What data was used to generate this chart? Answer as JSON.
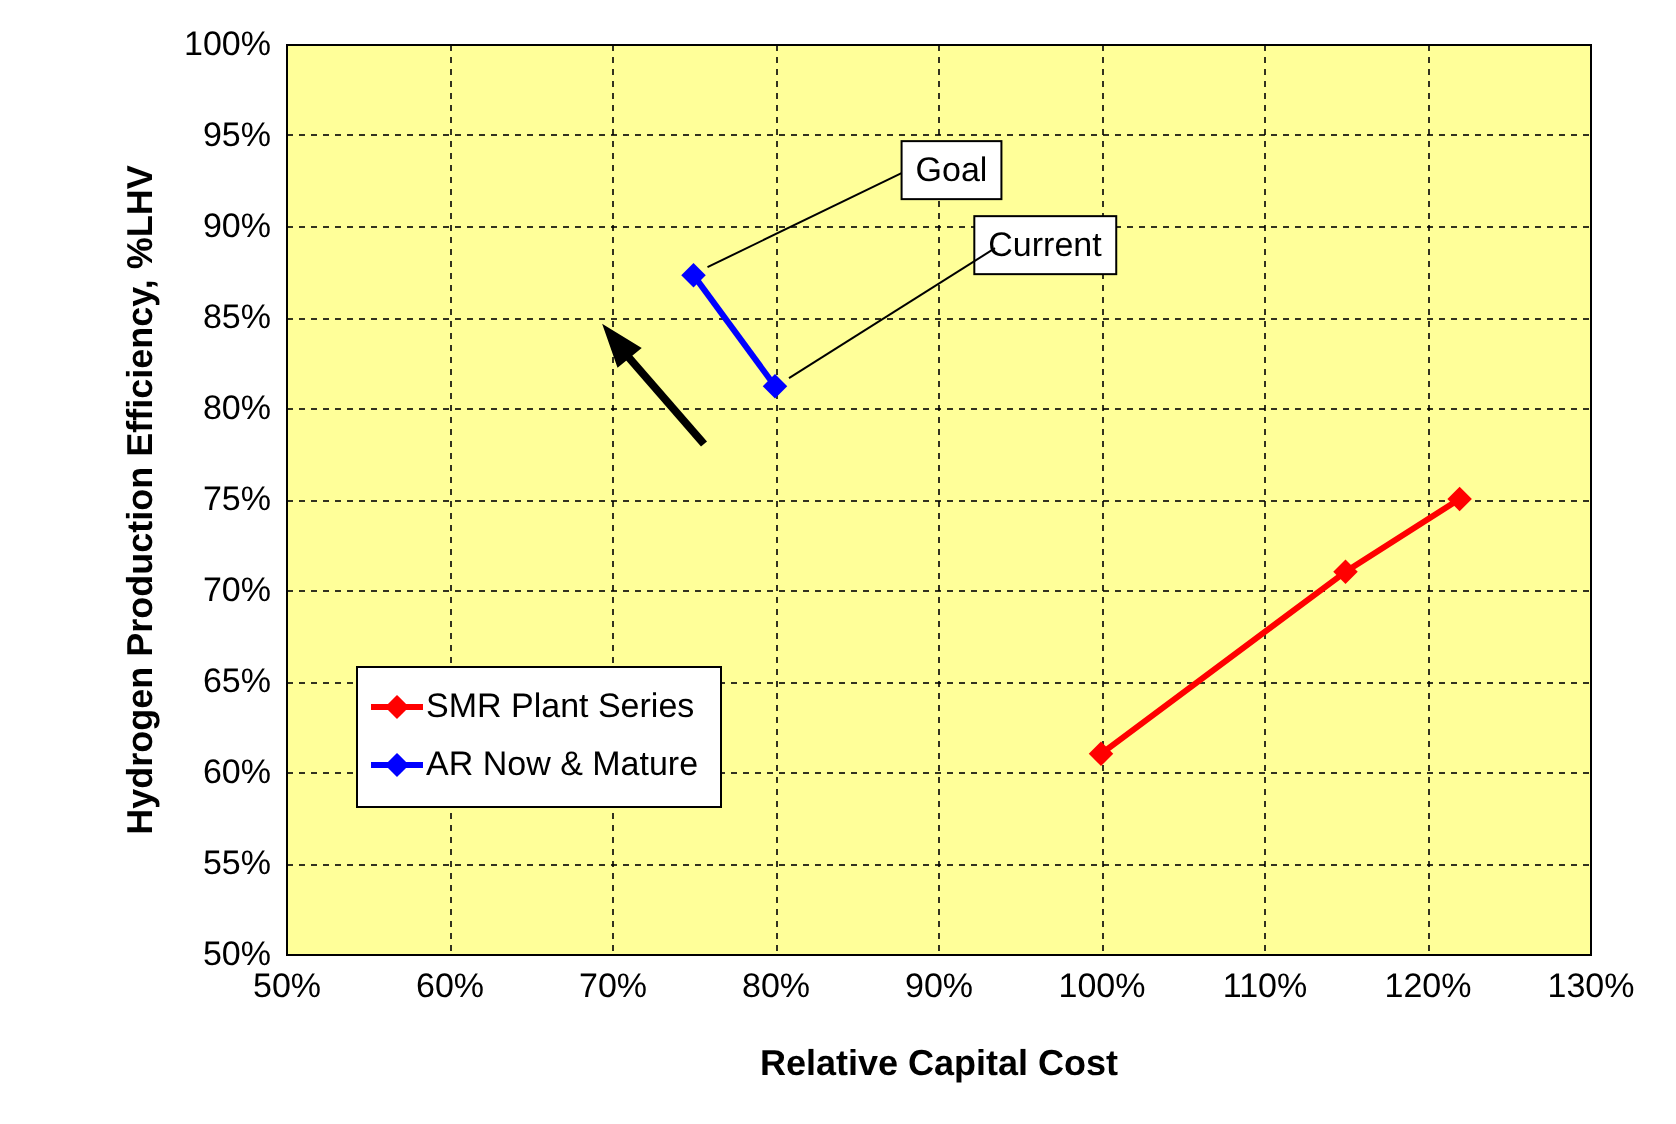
{
  "chart_data": {
    "type": "line",
    "xlabel": "Relative Capital Cost",
    "ylabel": "Hydrogen Production Efficiency, %LHV",
    "series": [
      {
        "name": "SMR Plant Series",
        "color": "#ff0000",
        "x": [
          100,
          115,
          122
        ],
        "values": [
          61,
          71,
          75
        ]
      },
      {
        "name": "AR Now & Mature",
        "color": "#0000ff",
        "x": [
          75,
          80
        ],
        "values": [
          87.3,
          81.2
        ]
      }
    ],
    "xlim": [
      50,
      130
    ],
    "xticks": [
      {
        "value": 50,
        "label": "50%"
      },
      {
        "value": 60,
        "label": "60%"
      },
      {
        "value": 70,
        "label": "70%"
      },
      {
        "value": 80,
        "label": "80%"
      },
      {
        "value": 90,
        "label": "90%"
      },
      {
        "value": 100,
        "label": "100%"
      },
      {
        "value": 110,
        "label": "110%"
      },
      {
        "value": 120,
        "label": "120%"
      },
      {
        "value": 130,
        "label": "130%"
      }
    ],
    "ylim": [
      50,
      100
    ],
    "yticks": [
      {
        "value": 50,
        "label": "50%"
      },
      {
        "value": 55,
        "label": "55%"
      },
      {
        "value": 60,
        "label": "60%"
      },
      {
        "value": 65,
        "label": "65%"
      },
      {
        "value": 70,
        "label": "70%"
      },
      {
        "value": 75,
        "label": "75%"
      },
      {
        "value": 80,
        "label": "80%"
      },
      {
        "value": 85,
        "label": "85%"
      },
      {
        "value": 90,
        "label": "90%"
      },
      {
        "value": 95,
        "label": "95%"
      },
      {
        "value": 100,
        "label": "100%"
      }
    ],
    "annotations": [
      {
        "text": "Goal",
        "x": 75,
        "y": 87.3
      },
      {
        "text": "Current",
        "x": 80,
        "y": 81.2
      }
    ],
    "grid": true,
    "legend": "bottom left",
    "marker": "diamond",
    "line_style": "solid"
  }
}
